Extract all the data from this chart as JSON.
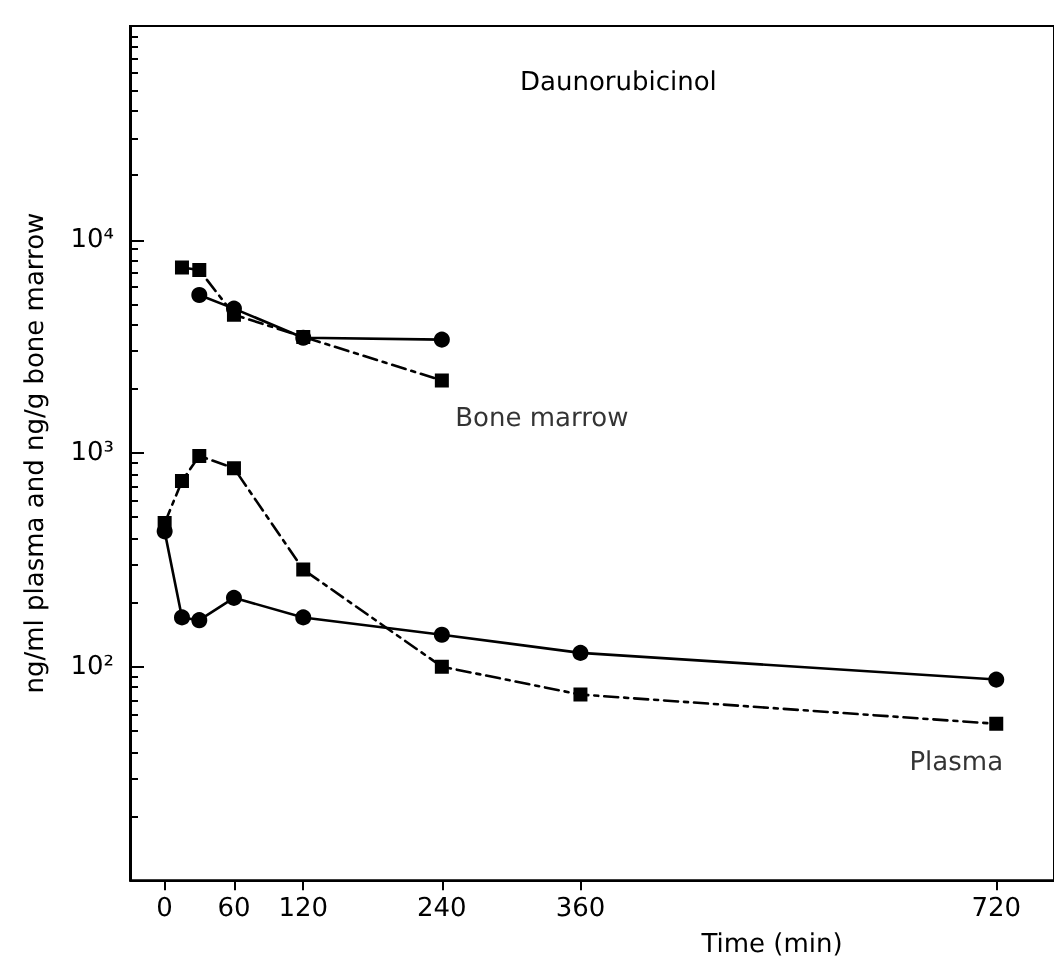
{
  "chart_data": {
    "type": "line",
    "title": "Daunorubicinol",
    "xlabel": "Time (min)",
    "ylabel": "ng/ml plasma and ng/g bone marrow",
    "log": "y",
    "xlim": [
      -30,
      770
    ],
    "xticks": [
      0,
      60,
      120,
      240,
      360,
      720
    ],
    "ylim": [
      10,
      100000
    ],
    "yticks": [
      {
        "value": 100,
        "label": "10²"
      },
      {
        "value": 1000,
        "label": "10³"
      },
      {
        "value": 10000,
        "label": "10⁴"
      }
    ],
    "grid": false,
    "series": [
      {
        "color": "#000000",
        "marker": "circle",
        "line_style": "solid",
        "x": [
          30,
          60,
          120,
          240
        ],
        "values": [
          5500,
          4750,
          3470,
          3400
        ]
      },
      {
        "color": "#000000",
        "marker": "square",
        "line_style": "dashed",
        "x": [
          15,
          30,
          60,
          120,
          240
        ],
        "values": [
          7400,
          7200,
          4450,
          3500,
          2190
        ]
      },
      {
        "color": "#000000",
        "marker": "circle",
        "line_style": "solid",
        "x": [
          0,
          15,
          30,
          60,
          120,
          240,
          360,
          720
        ],
        "values": [
          430,
          170,
          165,
          210,
          170,
          141,
          116,
          87
        ]
      },
      {
        "color": "#000000",
        "marker": "square",
        "line_style": "dashed",
        "x": [
          0,
          15,
          30,
          60,
          120,
          240,
          360,
          720
        ],
        "values": [
          470,
          740,
          970,
          850,
          285,
          100,
          74,
          54
        ]
      }
    ],
    "annotations": [
      {
        "text": "Bone marrow",
        "x": 240,
        "y": 2190
      },
      {
        "text": "Plasma",
        "x": 720,
        "y": 54
      }
    ]
  }
}
